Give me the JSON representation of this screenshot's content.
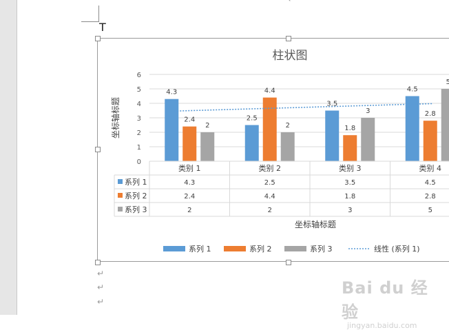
{
  "chart_data": {
    "type": "bar",
    "title": "柱状图",
    "xlabel": "坐标轴标题",
    "ylabel": "坐标轴标题",
    "ylim": [
      0,
      6
    ],
    "ytick_step": 1,
    "grid": true,
    "legend_position": "bottom",
    "categories": [
      "类别 1",
      "类别 2",
      "类别 3",
      "类别 4"
    ],
    "series": [
      {
        "name": "系列 1",
        "color": "#5b9bd5",
        "values": [
          4.3,
          2.5,
          3.5,
          4.5
        ]
      },
      {
        "name": "系列 2",
        "color": "#ed7d31",
        "values": [
          2.4,
          4.4,
          1.8,
          2.8
        ]
      },
      {
        "name": "系列 3",
        "color": "#a5a5a5",
        "values": [
          2,
          2,
          3,
          5
        ]
      }
    ],
    "trendline": {
      "name": "线性 (系列 1)",
      "series": "系列 1",
      "type": "linear",
      "color": "#5b9bd5"
    },
    "data_table": true
  },
  "document": {
    "cursor_glyph": "T",
    "paragraph_mark": "↵",
    "watermark_brand": "Bai du 经验",
    "watermark_url": "jingyan.baidu.com"
  }
}
